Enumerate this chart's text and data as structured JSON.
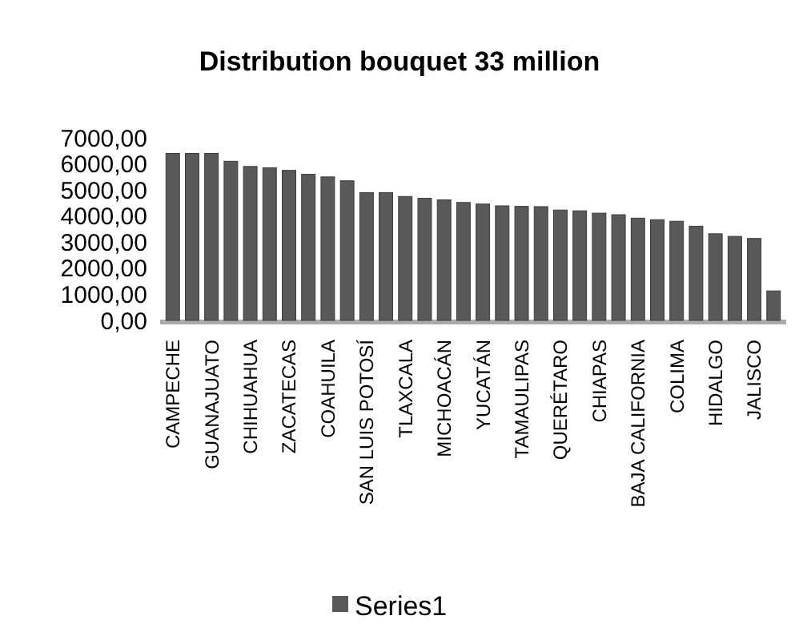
{
  "chart_data": {
    "type": "bar",
    "title": "Distribution bouquet 33 million",
    "categories": [
      "CAMPECHE",
      null,
      "GUANAJUATO",
      null,
      "CHIHUAHUA",
      null,
      "ZACATECAS",
      null,
      "COAHUILA",
      null,
      "SAN LUIS POTOSÍ",
      null,
      "TLAXCALA",
      null,
      "MICHOACÁN",
      null,
      "YUCATÁN",
      null,
      "TAMAULIPAS",
      null,
      "QUERÉTARO",
      null,
      "CHIAPAS",
      null,
      "BAJA CALIFORNIA",
      null,
      "COLIMA",
      null,
      "HIDALGO",
      null,
      "JALISCO",
      null
    ],
    "series": [
      {
        "name": "Series1",
        "color": "#595959",
        "values": [
          6400,
          6400,
          6400,
          6100,
          5900,
          5850,
          5750,
          5600,
          5500,
          5350,
          4900,
          4900,
          4750,
          4680,
          4620,
          4520,
          4460,
          4390,
          4370,
          4360,
          4230,
          4200,
          4110,
          4050,
          3920,
          3860,
          3800,
          3610,
          3320,
          3220,
          3140,
          1130
        ]
      }
    ],
    "ylim": [
      0,
      7000
    ],
    "yticks": [
      {
        "value": 0,
        "label": "0,00"
      },
      {
        "value": 1000,
        "label": "1000,00"
      },
      {
        "value": 2000,
        "label": "2000,00"
      },
      {
        "value": 3000,
        "label": "3000,00"
      },
      {
        "value": 4000,
        "label": "4000,00"
      },
      {
        "value": 5000,
        "label": "5000,00"
      },
      {
        "value": 6000,
        "label": "6000,00"
      },
      {
        "value": 7000,
        "label": "7000,00"
      }
    ],
    "legend": "bottom"
  }
}
